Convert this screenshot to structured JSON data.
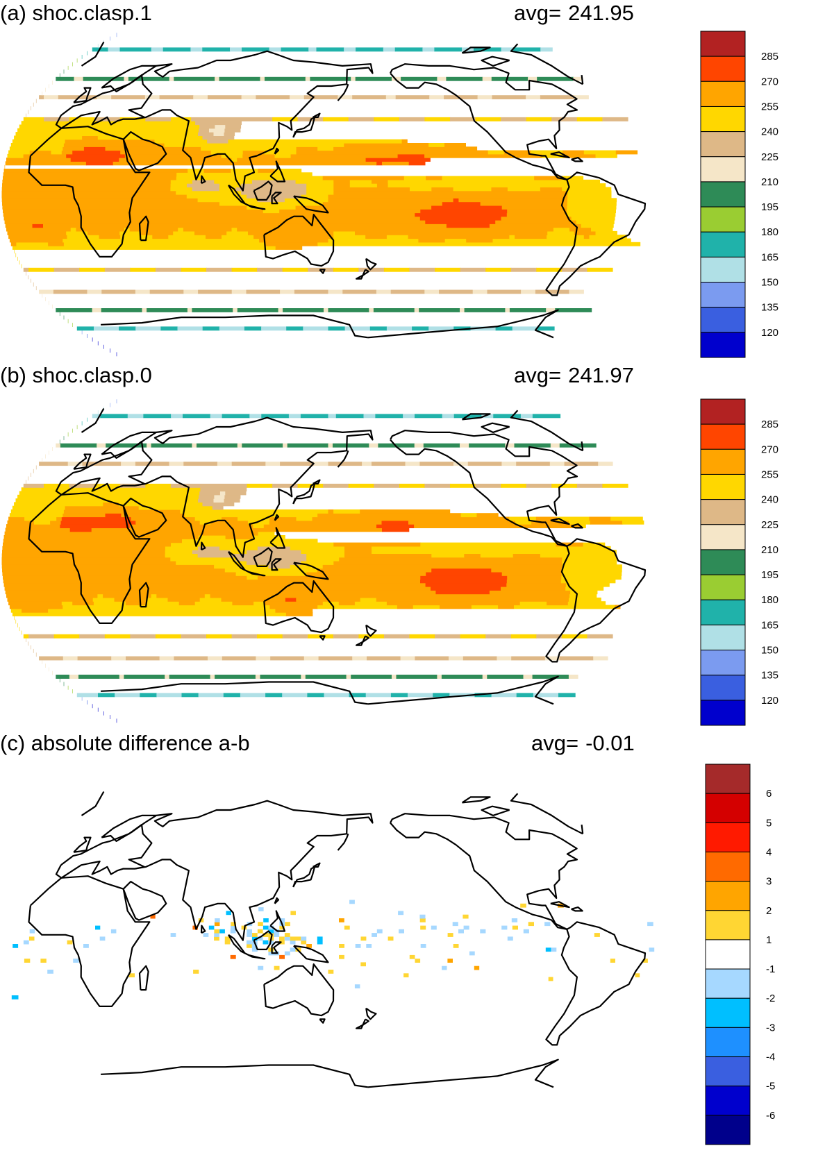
{
  "panels": [
    {
      "title": "(a) shoc.clasp.1",
      "avg_label": "avg=",
      "avg_value": "241.95",
      "colorbar": {
        "labels": [
          "285",
          "270",
          "255",
          "240",
          "225",
          "210",
          "195",
          "180",
          "165",
          "150",
          "135",
          "120"
        ],
        "colors": [
          "#B22222",
          "#FF4500",
          "#FFA500",
          "#FFD700",
          "#DEB887",
          "#F5E6C8",
          "#2E8B57",
          "#9ACD32",
          "#20B2AA",
          "#B0E0E6",
          "#7B9BF0",
          "#3A5FE0",
          "#0000CD"
        ]
      }
    },
    {
      "title": "(b) shoc.clasp.0",
      "avg_label": "avg=",
      "avg_value": "241.97",
      "colorbar": {
        "labels": [
          "285",
          "270",
          "255",
          "240",
          "225",
          "210",
          "195",
          "180",
          "165",
          "150",
          "135",
          "120"
        ],
        "colors": [
          "#B22222",
          "#FF4500",
          "#FFA500",
          "#FFD700",
          "#DEB887",
          "#F5E6C8",
          "#2E8B57",
          "#9ACD32",
          "#20B2AA",
          "#B0E0E6",
          "#7B9BF0",
          "#3A5FE0",
          "#0000CD"
        ]
      }
    },
    {
      "title": "(c) absolute difference a-b",
      "avg_label": "avg=",
      "avg_value": "-0.01",
      "colorbar": {
        "labels": [
          "6",
          "5",
          "4",
          "3",
          "2",
          "1",
          "-1",
          "-2",
          "-3",
          "-4",
          "-5",
          "-6"
        ],
        "colors": [
          "#A52A2A",
          "#D40000",
          "#FF1A00",
          "#FF6A00",
          "#FFA500",
          "#FFD633",
          "#FFFFFF",
          "#A6D8FF",
          "#00BFFF",
          "#1E90FF",
          "#3A5FE0",
          "#0000CD",
          "#00008B"
        ]
      }
    }
  ]
}
